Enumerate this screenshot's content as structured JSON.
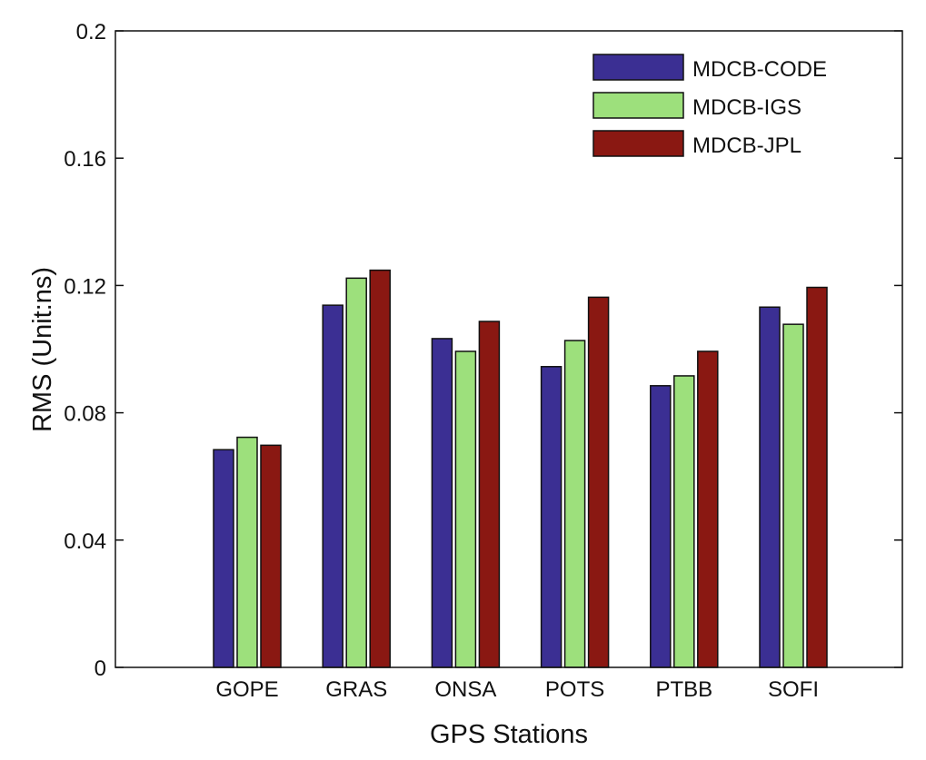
{
  "chart_data": {
    "type": "bar",
    "title": "",
    "xlabel": "GPS Stations",
    "ylabel": "RMS (Unit:ns)",
    "ylim": [
      0,
      0.2
    ],
    "yticks": [
      "0",
      "0.04",
      "0.08",
      "0.12",
      "0.16",
      "0.2"
    ],
    "categories": [
      "GOPE",
      "GRAS",
      "ONSA",
      "POTS",
      "PTBB",
      "SOFI"
    ],
    "grid": false,
    "legend_position": "top-right",
    "series": [
      {
        "name": "MDCB-CODE",
        "color": "#3b2f93",
        "values": [
          0.0684,
          0.1138,
          0.1033,
          0.0945,
          0.0885,
          0.1132
        ]
      },
      {
        "name": "MDCB-IGS",
        "color": "#9de07c",
        "values": [
          0.0723,
          0.1223,
          0.0993,
          0.1027,
          0.0916,
          0.1078
        ]
      },
      {
        "name": "MDCB-JPL",
        "color": "#8a1812",
        "values": [
          0.0698,
          0.1248,
          0.1087,
          0.1163,
          0.0993,
          0.1194
        ]
      }
    ]
  }
}
